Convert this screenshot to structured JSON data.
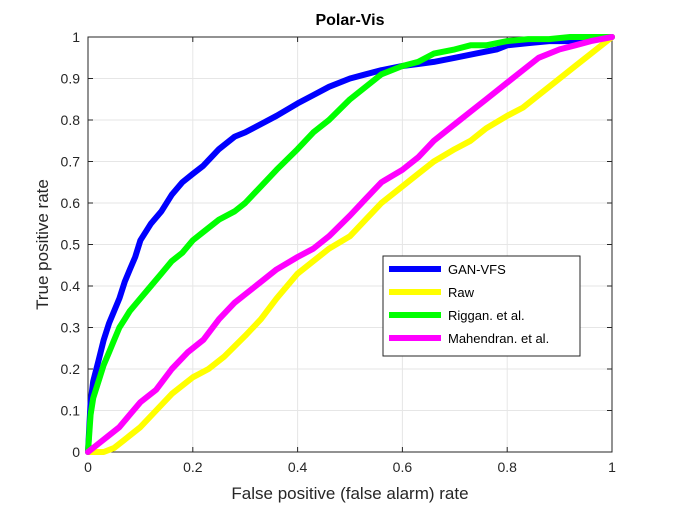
{
  "chart_data": {
    "type": "line",
    "title": "Polar-Vis",
    "xlabel": "False positive (false alarm) rate",
    "ylabel": "True positive  rate",
    "xlim": [
      0,
      1
    ],
    "ylim": [
      0,
      1
    ],
    "x_ticks": [
      "0",
      "0.2",
      "0.4",
      "0.6",
      "0.8",
      "1"
    ],
    "y_ticks": [
      "0",
      "0.1",
      "0.2",
      "0.3",
      "0.4",
      "0.5",
      "0.6",
      "0.7",
      "0.8",
      "0.9",
      "1"
    ],
    "grid": true,
    "legend_position": "lower-right",
    "series": [
      {
        "name": "GAN-VFS",
        "color": "#0000ff",
        "x": [
          0,
          0.005,
          0.01,
          0.02,
          0.03,
          0.04,
          0.05,
          0.06,
          0.07,
          0.08,
          0.09,
          0.1,
          0.12,
          0.14,
          0.16,
          0.18,
          0.2,
          0.22,
          0.25,
          0.28,
          0.3,
          0.33,
          0.36,
          0.4,
          0.43,
          0.46,
          0.5,
          0.53,
          0.56,
          0.6,
          0.63,
          0.66,
          0.7,
          0.74,
          0.78,
          0.8,
          0.84,
          0.88,
          0.92,
          0.96,
          1
        ],
        "y": [
          0,
          0.12,
          0.17,
          0.22,
          0.27,
          0.31,
          0.34,
          0.37,
          0.41,
          0.44,
          0.47,
          0.51,
          0.55,
          0.58,
          0.62,
          0.65,
          0.67,
          0.69,
          0.73,
          0.76,
          0.77,
          0.79,
          0.81,
          0.84,
          0.86,
          0.88,
          0.9,
          0.91,
          0.92,
          0.93,
          0.935,
          0.94,
          0.95,
          0.96,
          0.97,
          0.98,
          0.985,
          0.99,
          0.99,
          0.995,
          1
        ]
      },
      {
        "name": "Raw",
        "color": "#ffff00",
        "x": [
          0,
          0.03,
          0.05,
          0.07,
          0.1,
          0.13,
          0.16,
          0.2,
          0.23,
          0.26,
          0.3,
          0.33,
          0.36,
          0.4,
          0.43,
          0.46,
          0.5,
          0.53,
          0.56,
          0.6,
          0.63,
          0.66,
          0.7,
          0.73,
          0.76,
          0.8,
          0.83,
          0.86,
          0.9,
          0.93,
          0.96,
          1
        ],
        "y": [
          0,
          0,
          0.01,
          0.03,
          0.06,
          0.1,
          0.14,
          0.18,
          0.2,
          0.23,
          0.28,
          0.32,
          0.37,
          0.43,
          0.46,
          0.49,
          0.52,
          0.56,
          0.6,
          0.64,
          0.67,
          0.7,
          0.73,
          0.75,
          0.78,
          0.81,
          0.83,
          0.86,
          0.9,
          0.93,
          0.96,
          1
        ]
      },
      {
        "name": "Riggan. et al.",
        "color": "#00ff00",
        "x": [
          0,
          0.005,
          0.01,
          0.02,
          0.03,
          0.04,
          0.05,
          0.06,
          0.07,
          0.08,
          0.1,
          0.12,
          0.14,
          0.16,
          0.18,
          0.2,
          0.22,
          0.25,
          0.28,
          0.3,
          0.33,
          0.36,
          0.4,
          0.43,
          0.46,
          0.5,
          0.53,
          0.56,
          0.6,
          0.63,
          0.66,
          0.7,
          0.73,
          0.76,
          0.8,
          0.84,
          0.88,
          0.92,
          0.96,
          1
        ],
        "y": [
          0,
          0.09,
          0.13,
          0.17,
          0.21,
          0.24,
          0.27,
          0.3,
          0.32,
          0.34,
          0.37,
          0.4,
          0.43,
          0.46,
          0.48,
          0.51,
          0.53,
          0.56,
          0.58,
          0.6,
          0.64,
          0.68,
          0.73,
          0.77,
          0.8,
          0.85,
          0.88,
          0.91,
          0.93,
          0.94,
          0.96,
          0.97,
          0.98,
          0.98,
          0.99,
          0.995,
          0.995,
          1,
          1,
          1
        ]
      },
      {
        "name": "Mahendran. et al.",
        "color": "#ff00ff",
        "x": [
          0,
          0.02,
          0.04,
          0.06,
          0.08,
          0.1,
          0.13,
          0.16,
          0.19,
          0.22,
          0.25,
          0.28,
          0.3,
          0.33,
          0.36,
          0.4,
          0.43,
          0.46,
          0.5,
          0.53,
          0.56,
          0.6,
          0.63,
          0.66,
          0.7,
          0.73,
          0.76,
          0.8,
          0.83,
          0.86,
          0.9,
          0.93,
          0.96,
          1
        ],
        "y": [
          0,
          0.02,
          0.04,
          0.06,
          0.09,
          0.12,
          0.15,
          0.2,
          0.24,
          0.27,
          0.32,
          0.36,
          0.38,
          0.41,
          0.44,
          0.47,
          0.49,
          0.52,
          0.57,
          0.61,
          0.65,
          0.68,
          0.71,
          0.75,
          0.79,
          0.82,
          0.85,
          0.89,
          0.92,
          0.95,
          0.97,
          0.98,
          0.99,
          1
        ]
      }
    ]
  }
}
